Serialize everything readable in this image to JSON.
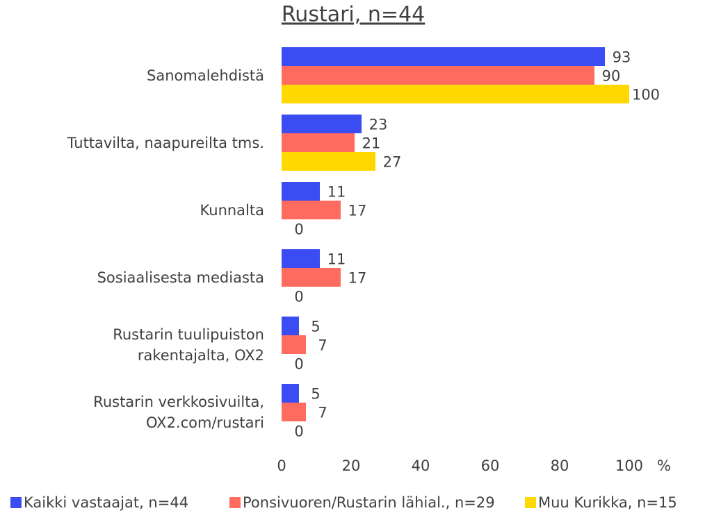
{
  "chart_data": {
    "type": "hbar",
    "title": "Rustari, n=44",
    "categories": [
      "Sanomalehdistä",
      "Tuttavilta, naapureilta tms.",
      "Kunnalta",
      "Sosiaalisesta mediasta",
      "Rustarin tuulipuiston\nrakentajalta, OX2",
      "Rustarin verkkosivuilta,\nOX2.com/rustari"
    ],
    "series": [
      {
        "name": "Kaikki vastaajat, n=44",
        "color": "#3a4cf2",
        "values": [
          93,
          23,
          11,
          11,
          5,
          5
        ]
      },
      {
        "name": "Ponsivuoren/Rustarin lähial., n=29",
        "color": "#ff6b5e",
        "values": [
          90,
          21,
          17,
          17,
          7,
          7
        ]
      },
      {
        "name": "Muu Kurikka, n=15",
        "color": "#ffd800",
        "values": [
          100,
          27,
          0,
          0,
          0,
          0
        ]
      }
    ],
    "xlim": [
      0,
      100
    ],
    "xticks": [
      0,
      20,
      40,
      60,
      80,
      100
    ],
    "x_unit": "%",
    "legend": "bottom"
  }
}
